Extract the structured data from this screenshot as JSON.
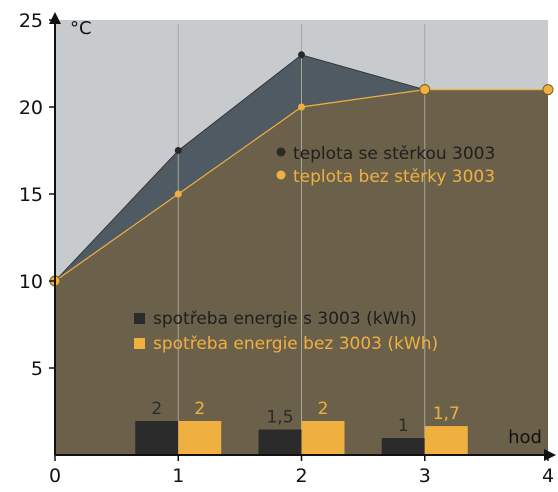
{
  "chart_data": {
    "type": "area",
    "xlabel": "hod",
    "ylabel": "°C",
    "xlim": [
      0,
      4
    ],
    "ylim": [
      0,
      25
    ],
    "x_ticks": [
      "0",
      "1",
      "2",
      "3",
      "4"
    ],
    "y_ticks": [
      "5",
      "10",
      "15",
      "20",
      "25"
    ],
    "x": [
      0,
      1,
      2,
      3,
      4
    ],
    "series": [
      {
        "name": "teplota se stěrkou 3003",
        "values": [
          10,
          17.5,
          23,
          21,
          21
        ],
        "color": "#2a2a2a",
        "fill": "#4f5a63"
      },
      {
        "name": "teplota bez stěrky 3003",
        "values": [
          10,
          15,
          20,
          21,
          21
        ],
        "color": "#f0b040",
        "fill": "#6b614a"
      }
    ],
    "bars": {
      "categories": [
        1,
        2,
        3
      ],
      "series": [
        {
          "name": "spotřeba energie s 3003 (kWh)",
          "values": [
            2,
            1.5,
            1
          ],
          "labels": [
            "2",
            "1,5",
            "1"
          ],
          "color": "#2b2b2b"
        },
        {
          "name": "spotřeba energie bez 3003 (kWh)",
          "values": [
            2,
            2,
            1.7
          ],
          "labels": [
            "2",
            "2",
            "1,7"
          ],
          "color": "#f0b040"
        }
      ]
    },
    "background": "#c8cbcd",
    "grid": "vertical"
  }
}
